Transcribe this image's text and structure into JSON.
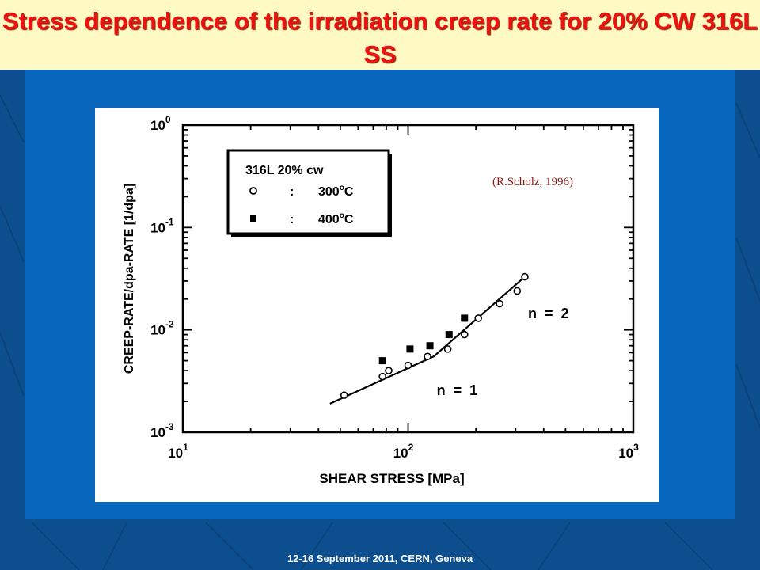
{
  "slide": {
    "title": "Stress dependence of the irradiation creep rate for 20% CW 316L SS",
    "footer": "12-16  September 2011, CERN, Geneva",
    "colors": {
      "background": "#0d4f8e",
      "panel": "#0866bd",
      "title_bar": "#fff9c4",
      "title_text": "#ee1111"
    }
  },
  "chart_data": {
    "type": "scatter",
    "xlabel": "SHEAR STRESS [MPa]",
    "ylabel": "CREEP-RATE/dpa-RATE [1/dpa]",
    "xscale": "log",
    "yscale": "log",
    "xlim": [
      10,
      1000
    ],
    "ylim": [
      0.001,
      1
    ],
    "x_ticks": [
      {
        "base": "10",
        "exp": "1"
      },
      {
        "base": "10",
        "exp": "2"
      },
      {
        "base": "10",
        "exp": "3"
      }
    ],
    "y_ticks": [
      {
        "base": "10",
        "exp": "0"
      },
      {
        "base": "10",
        "exp": "-1"
      },
      {
        "base": "10",
        "exp": "-2"
      },
      {
        "base": "10",
        "exp": "-3"
      }
    ],
    "legend": {
      "placement": "top-left",
      "title": "316L  20%  cw",
      "entries": [
        {
          "marker": "open-circle",
          "sep": ":",
          "label": "300",
          "unit": "C",
          "deg": "o"
        },
        {
          "marker": "filled-square",
          "sep": ":",
          "label": "400",
          "unit": "C",
          "deg": "o"
        }
      ]
    },
    "series": [
      {
        "name": "300°C",
        "marker": "open-circle",
        "points": [
          [
            52,
            0.0023
          ],
          [
            77,
            0.0035
          ],
          [
            82,
            0.004
          ],
          [
            100,
            0.0045
          ],
          [
            122,
            0.0055
          ],
          [
            150,
            0.0065
          ],
          [
            178,
            0.009
          ],
          [
            205,
            0.013
          ],
          [
            255,
            0.018
          ],
          [
            305,
            0.024
          ],
          [
            330,
            0.033
          ]
        ]
      },
      {
        "name": "400°C",
        "marker": "filled-square",
        "points": [
          [
            77,
            0.005
          ],
          [
            102,
            0.0065
          ],
          [
            125,
            0.007
          ],
          [
            152,
            0.009
          ],
          [
            178,
            0.013
          ]
        ]
      }
    ],
    "fit_line": {
      "points": [
        [
          45,
          0.0019
        ],
        [
          130,
          0.0055
        ],
        [
          330,
          0.033
        ]
      ]
    },
    "annotations": [
      {
        "text": "n  =  2",
        "x": 420,
        "y": 0.013
      },
      {
        "text": "n  =  1",
        "x": 165,
        "y": 0.0023
      }
    ],
    "citation": "(R.Scholz, 1996)",
    "grid": false
  }
}
